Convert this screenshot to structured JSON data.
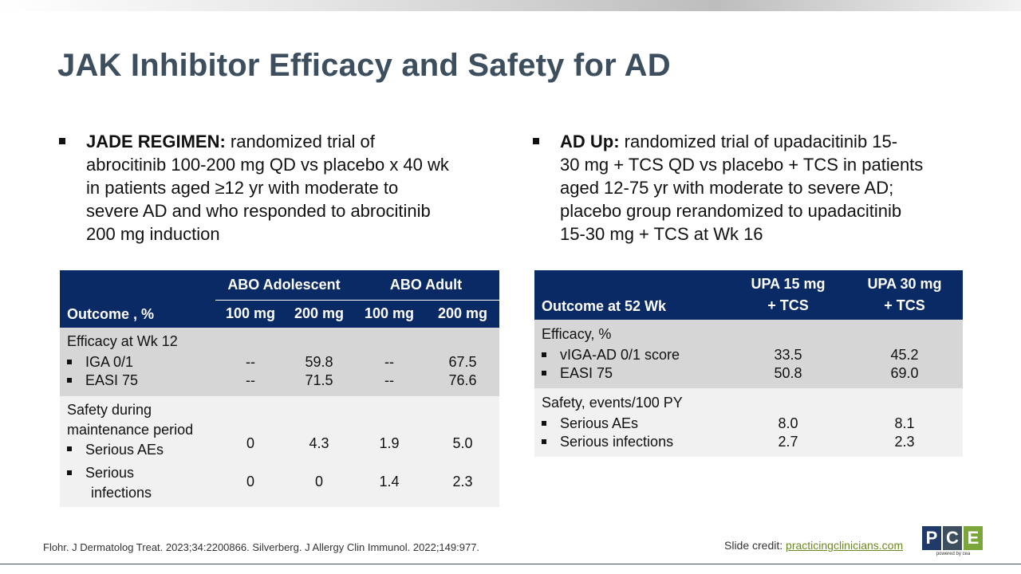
{
  "slide": {
    "title": "JAK Inhibitor Efficacy and Safety for AD"
  },
  "left_bullet": {
    "bold": "JADE REGIMEN:",
    "line1": "randomized trial of",
    "line2": "abrocitinib 100-200 mg QD vs placebo x 40 wk",
    "line3": "in patients aged ≥12 yr with moderate to",
    "line4": "severe AD and who responded to abrocitinib",
    "line5": "200 mg induction"
  },
  "right_bullet": {
    "bold": "AD Up:",
    "line1": "randomized trial of upadacitinib 15-",
    "line2": "30 mg + TCS QD vs placebo + TCS in patients",
    "line3": "aged 12-75 yr with moderate to severe AD;",
    "line4": "placebo group rerandomized to upadacitinib",
    "line5": "15-30 mg + TCS at Wk 16"
  },
  "table_left": {
    "outcome_header": "Outcome , %",
    "group1": "ABO Adolescent",
    "group2": "ABO Adult",
    "dose_headers": [
      "100 mg",
      "200 mg",
      "100 mg",
      "200 mg"
    ],
    "efficacy_title": "Efficacy at Wk 12",
    "efficacy_rows": [
      {
        "label": "IGA 0/1",
        "values": [
          "--",
          "59.8",
          "--",
          "67.5"
        ]
      },
      {
        "label": "EASI 75",
        "values": [
          "--",
          "71.5",
          "--",
          "76.6"
        ]
      }
    ],
    "safety_title_1": "Safety during",
    "safety_title_2": "maintenance period",
    "safety_row1_label": "Serious AEs",
    "safety_row1_values": [
      "0",
      "4.3",
      "1.9",
      "5.0"
    ],
    "safety_row2_label_1": "Serious",
    "safety_row2_label_2": "infections",
    "safety_row2_values": [
      "0",
      "0",
      "1.4",
      "2.3"
    ]
  },
  "table_right": {
    "outcome_header": "Outcome at 52 Wk",
    "col1_line1": "UPA 15 mg",
    "col1_line2": "+ TCS",
    "col2_line1": "UPA 30 mg",
    "col2_line2": "+ TCS",
    "efficacy_title": "Efficacy, %",
    "efficacy_rows": [
      {
        "label": "vIGA-AD 0/1 score",
        "values": [
          "33.5",
          "45.2"
        ]
      },
      {
        "label": "EASI 75",
        "values": [
          "50.8",
          "69.0"
        ]
      }
    ],
    "safety_title": "Safety, events/100 PY",
    "safety_rows": [
      {
        "label": "Serious AEs",
        "values": [
          "8.0",
          "8.1"
        ]
      },
      {
        "label": "Serious infections",
        "values": [
          "2.7",
          "2.3"
        ]
      }
    ]
  },
  "footer": {
    "references": "Flohr. J Dermatolog Treat. 2023;34:2200866. Silverberg. J Allergy Clin Immunol. 2022;149:977.",
    "credit_prefix": "Slide credit:",
    "credit_link": "practicingclinicians.com",
    "logo_letters": [
      "P",
      "C",
      "E"
    ],
    "logo_tagline": "powered by cea",
    "logo_colors": [
      "#1f3a68",
      "#3d4f5e",
      "#7aa63a"
    ]
  }
}
